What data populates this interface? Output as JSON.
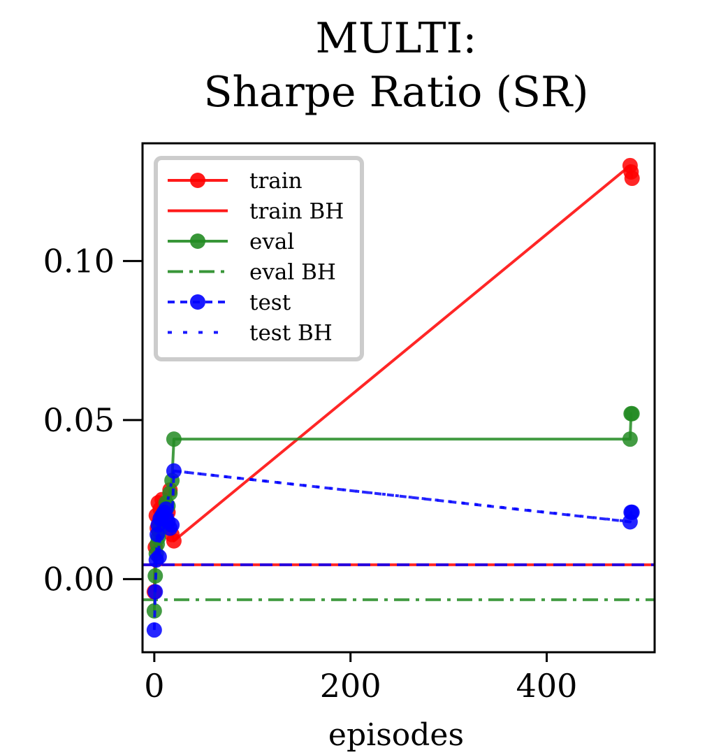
{
  "chart_data": {
    "type": "line",
    "title_line1": "MULTI:",
    "title_line2": "Sharpe Ratio (SR)",
    "xlabel": "episodes",
    "ylabel": "",
    "xlim": [
      -12,
      510
    ],
    "ylim": [
      -0.023,
      0.137
    ],
    "xticks": [
      0,
      200,
      400
    ],
    "xtick_labels": [
      "0",
      "200",
      "400"
    ],
    "yticks": [
      0.0,
      0.05,
      0.1
    ],
    "ytick_labels": [
      "0.00",
      "0.05",
      "0.10"
    ],
    "legend_position": "top-left",
    "series": [
      {
        "name": "train",
        "color": "#ff0000",
        "style": "solid-markers",
        "x": [
          0,
          1,
          2,
          3,
          4,
          5,
          6,
          8,
          10,
          12,
          14,
          16,
          18,
          20,
          485,
          486,
          487
        ],
        "y": [
          -0.004,
          0.01,
          0.02,
          0.016,
          0.024,
          0.018,
          0.022,
          0.025,
          0.021,
          0.017,
          0.021,
          0.028,
          0.014,
          0.012,
          0.13,
          0.128,
          0.126
        ]
      },
      {
        "name": "train BH",
        "color": "#ff0000",
        "style": "solid",
        "y_const": 0.0045
      },
      {
        "name": "eval",
        "color": "#228b22",
        "style": "solid-markers",
        "x": [
          0,
          1,
          2,
          3,
          4,
          5,
          6,
          8,
          10,
          12,
          14,
          16,
          18,
          20,
          485,
          486,
          487
        ],
        "y": [
          -0.01,
          0.001,
          0.008,
          0.011,
          0.013,
          0.015,
          0.017,
          0.019,
          0.021,
          0.024,
          0.023,
          0.027,
          0.031,
          0.044,
          0.044,
          0.052,
          0.052
        ]
      },
      {
        "name": "eval BH",
        "color": "#228b22",
        "style": "dashdot",
        "y_const": -0.0065
      },
      {
        "name": "test",
        "color": "#0000ff",
        "style": "dashed-markers",
        "x": [
          0,
          1,
          2,
          3,
          4,
          5,
          6,
          8,
          10,
          12,
          14,
          16,
          18,
          20,
          485,
          486,
          487
        ],
        "y": [
          -0.016,
          -0.004,
          0.006,
          0.014,
          0.017,
          0.007,
          0.019,
          0.02,
          0.021,
          0.022,
          0.018,
          0.016,
          0.017,
          0.034,
          0.018,
          0.021,
          0.021
        ]
      },
      {
        "name": "test BH",
        "color": "#0000ff",
        "style": "dotdash",
        "x": [
          0,
          20,
          487
        ],
        "y": [
          0.0045,
          0.034,
          0.018
        ],
        "baseline": 0.0045
      }
    ]
  }
}
